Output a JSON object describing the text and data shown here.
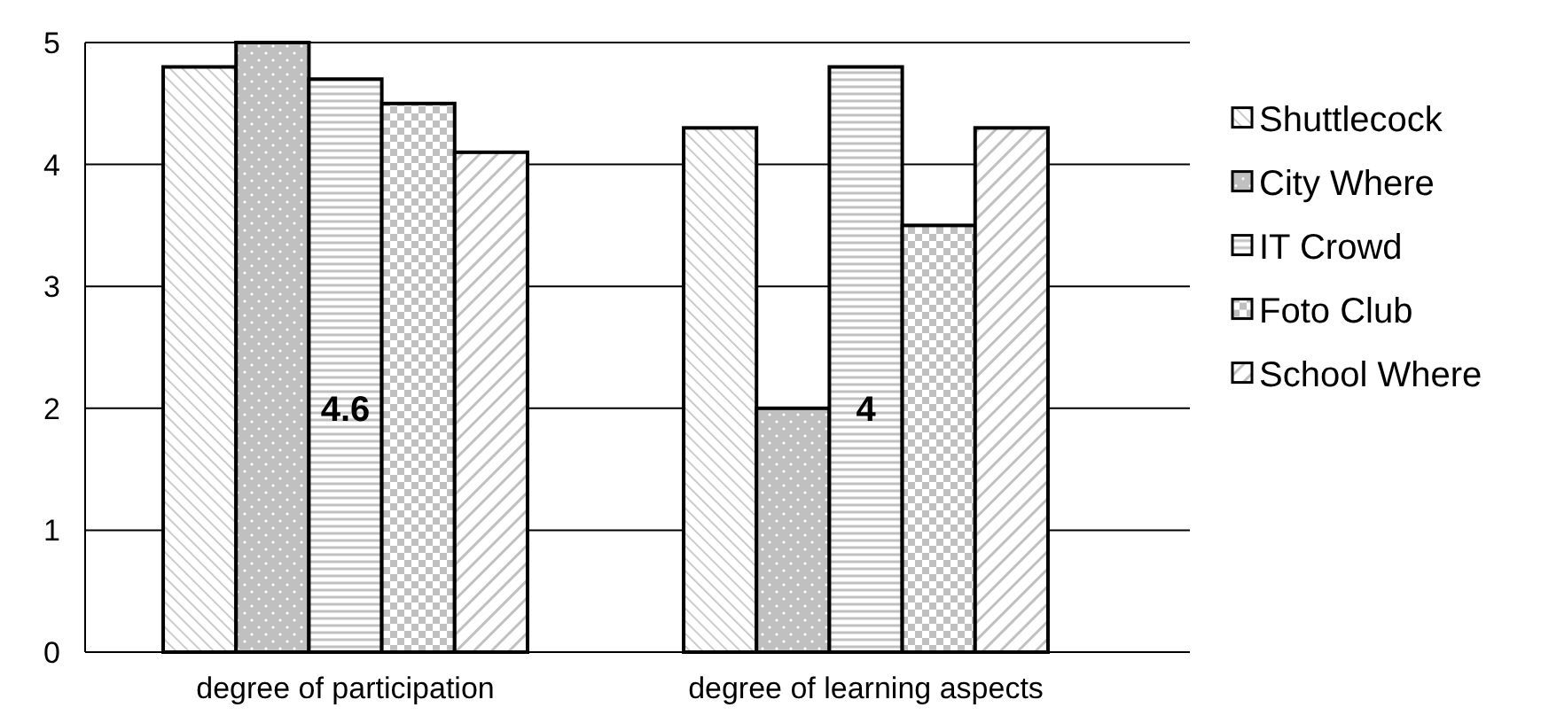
{
  "chart_data": {
    "type": "bar",
    "categories": [
      "degree of participation",
      "degree of learning aspects"
    ],
    "series": [
      {
        "name": "Shuttlecock",
        "values": [
          4.8,
          4.3
        ]
      },
      {
        "name": "City Where",
        "values": [
          5.0,
          2.0
        ]
      },
      {
        "name": "IT Crowd",
        "values": [
          4.7,
          4.8
        ]
      },
      {
        "name": "Foto Club",
        "values": [
          4.5,
          3.5
        ]
      },
      {
        "name": "School Where",
        "values": [
          4.1,
          4.3
        ]
      }
    ],
    "ylim": [
      0,
      5
    ],
    "yticks": [
      0,
      1,
      2,
      3,
      4,
      5
    ],
    "grid": "y",
    "legend": "right",
    "annotations": [
      "4.6",
      "4"
    ]
  }
}
